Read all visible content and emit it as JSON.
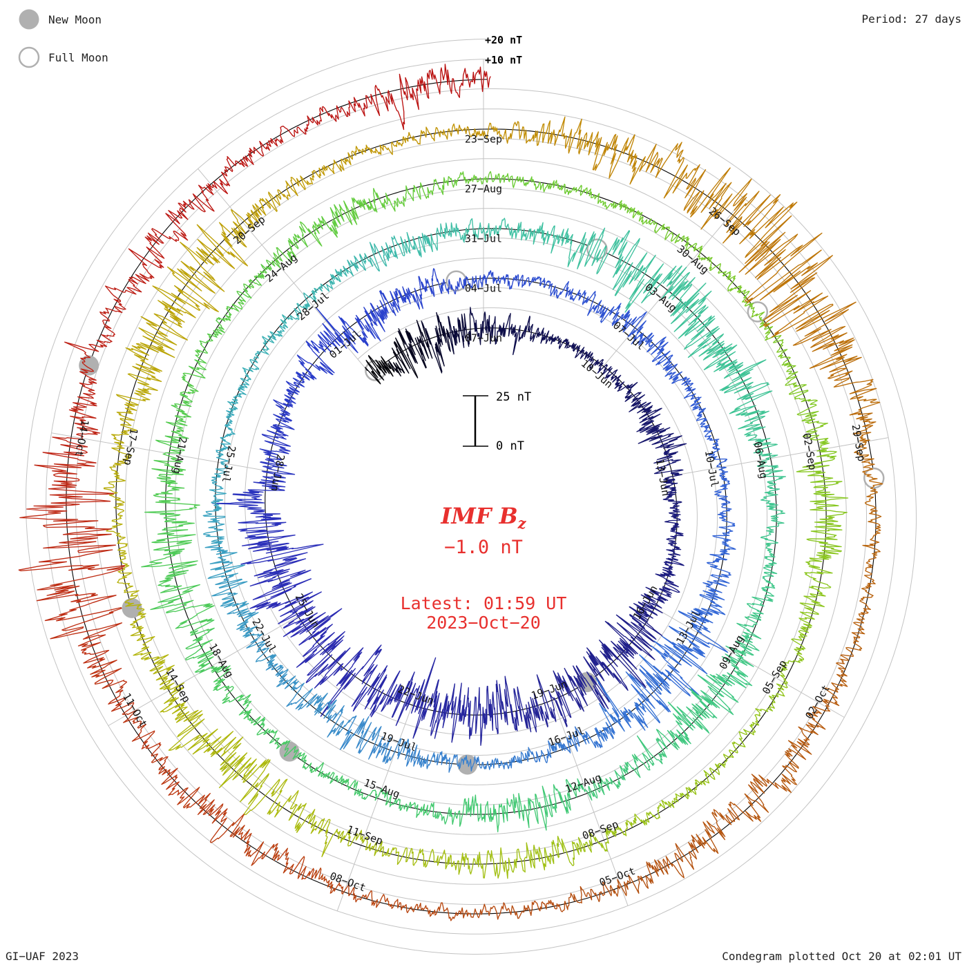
{
  "legend": {
    "new_moon_label": "New Moon",
    "full_moon_label": "Full Moon"
  },
  "header": {
    "period_label": "Period: 27 days"
  },
  "center_panel": {
    "title_main": "IMF B",
    "title_sub": "z",
    "value": "−1.0 nT",
    "latest_line1": "Latest: 01:59 UT",
    "latest_line2": "2023−Oct−20"
  },
  "scale_bar": {
    "top_label": "25 nT",
    "bottom_label": "0 nT"
  },
  "grid_labels": {
    "outer_plus20": "+20 nT",
    "outer_plus10": "+10 nT"
  },
  "footer": {
    "left": "GI−UAF 2023",
    "right": "Condegram plotted Oct 20 at 02:01 UT"
  },
  "colors": {
    "accent_red": "#e8302e",
    "moon_gray": "#b0b0b0",
    "grid_gray": "#c3c3c3",
    "baseline_black": "#000000",
    "label_black": "#111111"
  },
  "chart_data": {
    "type": "line",
    "subtype": "condegram-spiral",
    "description": "Solar wind IMF Bz plotted as a spiral, one revolution per 27-day solar rotation; time runs clockwise from top, 2023-Jun-04 through latest sample 2023-Oct-20 01:59 UT. Radial offset from the black baseline spiral gives Bz in nT (gray rings at +10 and +20 nT).",
    "title": "IMF Bz",
    "latest_value_nT": -1.0,
    "latest_time": "01:59 UT",
    "latest_date": "2023-Oct-20",
    "period_days": 27,
    "start_day_date": "2023-Jun-04",
    "radial_scale": {
      "bar_labels": [
        "0 nT",
        "25 nT"
      ],
      "bar_span_nT": 25,
      "grid_offsets_nT": [
        10,
        20
      ]
    },
    "date_labels": [
      {
        "text": "07−Jun",
        "day": 3
      },
      {
        "text": "04−Jul",
        "day": 30
      },
      {
        "text": "31−Jul",
        "day": 57
      },
      {
        "text": "27−Aug",
        "day": 84
      },
      {
        "text": "23−Sep",
        "day": 111
      },
      {
        "text": "10−Jun",
        "day": 6
      },
      {
        "text": "07−Jul",
        "day": 33
      },
      {
        "text": "03−Aug",
        "day": 60
      },
      {
        "text": "30−Aug",
        "day": 87
      },
      {
        "text": "26−Sep",
        "day": 114
      },
      {
        "text": "13−Jun",
        "day": 9
      },
      {
        "text": "10−Jul",
        "day": 36
      },
      {
        "text": "06−Aug",
        "day": 63
      },
      {
        "text": "02−Sep",
        "day": 90
      },
      {
        "text": "29−Sep",
        "day": 117
      },
      {
        "text": "16−Jun",
        "day": 12
      },
      {
        "text": "13−Jul",
        "day": 39
      },
      {
        "text": "09−Aug",
        "day": 66
      },
      {
        "text": "05−Sep",
        "day": 93
      },
      {
        "text": "02−Oct",
        "day": 120
      },
      {
        "text": "19−Jun",
        "day": 15
      },
      {
        "text": "16−Jul",
        "day": 42
      },
      {
        "text": "12−Aug",
        "day": 69
      },
      {
        "text": "08−Sep",
        "day": 96
      },
      {
        "text": "05−Oct",
        "day": 123
      },
      {
        "text": "22−Jun",
        "day": 18
      },
      {
        "text": "19−Jul",
        "day": 45
      },
      {
        "text": "15−Aug",
        "day": 72
      },
      {
        "text": "11−Sep",
        "day": 99
      },
      {
        "text": "08−Oct",
        "day": 126
      },
      {
        "text": "25−Jun",
        "day": 21
      },
      {
        "text": "22−Jul",
        "day": 48
      },
      {
        "text": "18−Aug",
        "day": 75
      },
      {
        "text": "14−Sep",
        "day": 102
      },
      {
        "text": "11−Oct",
        "day": 129
      },
      {
        "text": "28−Jun",
        "day": 24
      },
      {
        "text": "25−Jul",
        "day": 51
      },
      {
        "text": "21−Aug",
        "day": 78
      },
      {
        "text": "17−Sep",
        "day": 105
      },
      {
        "text": "14−Oct",
        "day": 132
      },
      {
        "text": "01−Jul",
        "day": 27
      },
      {
        "text": "28−Jul",
        "day": 54
      },
      {
        "text": "24−Aug",
        "day": 81
      },
      {
        "text": "20−Sep",
        "day": 108
      }
    ],
    "moon_events": {
      "new_moons": [
        {
          "date": "2023-Jun-18",
          "day": 14.19
        },
        {
          "date": "2023-Jul-17",
          "day": 43.77
        },
        {
          "date": "2023-Aug-16",
          "day": 73.4
        },
        {
          "date": "2023-Sep-15",
          "day": 103.07
        },
        {
          "date": "2023-Oct-14",
          "day": 132.75
        }
      ],
      "full_moons": [
        {
          "date": "2023-Jun-04",
          "day": 0.15
        },
        {
          "date": "2023-Jul-03",
          "day": 29.49
        },
        {
          "date": "2023-Aug-01",
          "day": 58.77
        },
        {
          "date": "2023-Aug-31",
          "day": 88.07
        },
        {
          "date": "2023-Sep-29",
          "day": 117.41
        }
      ]
    },
    "color_stops": [
      {
        "day": 0,
        "color": "#000000"
      },
      {
        "day": 3,
        "color": "#0d0d45"
      },
      {
        "day": 9,
        "color": "#191975"
      },
      {
        "day": 15,
        "color": "#232394"
      },
      {
        "day": 21,
        "color": "#2c2cb4"
      },
      {
        "day": 27,
        "color": "#2a3fcc"
      },
      {
        "day": 33,
        "color": "#2f55d2"
      },
      {
        "day": 39,
        "color": "#3268d6"
      },
      {
        "day": 45,
        "color": "#3a86cc"
      },
      {
        "day": 51,
        "color": "#3aa8be"
      },
      {
        "day": 57,
        "color": "#3fc0a4"
      },
      {
        "day": 63,
        "color": "#3fc492"
      },
      {
        "day": 66,
        "color": "#41c886"
      },
      {
        "day": 72,
        "color": "#43c96a"
      },
      {
        "day": 78,
        "color": "#52cb50"
      },
      {
        "day": 84,
        "color": "#69cc37"
      },
      {
        "day": 90,
        "color": "#85c722"
      },
      {
        "day": 96,
        "color": "#9dc214"
      },
      {
        "day": 102,
        "color": "#b2b60c"
      },
      {
        "day": 108,
        "color": "#bf9f07"
      },
      {
        "day": 111,
        "color": "#c29104"
      },
      {
        "day": 114,
        "color": "#bf7b08"
      },
      {
        "day": 117,
        "color": "#ba690b"
      },
      {
        "day": 120,
        "color": "#b75c0e"
      },
      {
        "day": 123,
        "color": "#b34e0e"
      },
      {
        "day": 126,
        "color": "#ba4310"
      },
      {
        "day": 129,
        "color": "#bd3513"
      },
      {
        "day": 132,
        "color": "#bf2516"
      },
      {
        "day": 135,
        "color": "#bc1713"
      },
      {
        "day": 138.1,
        "color": "#ba1111"
      }
    ],
    "activity_storms": [
      [
        1.7,
        1.6,
        8
      ],
      [
        8,
        1,
        5
      ],
      [
        13.5,
        2,
        9
      ],
      [
        16.5,
        1.5,
        8
      ],
      [
        19.5,
        2,
        9
      ],
      [
        22.5,
        2,
        9
      ],
      [
        27.5,
        1.5,
        6
      ],
      [
        33,
        1,
        4
      ],
      [
        39.8,
        1.6,
        10
      ],
      [
        45.7,
        1.2,
        6
      ],
      [
        49,
        1,
        5
      ],
      [
        55.7,
        0.8,
        4
      ],
      [
        60.5,
        2.2,
        11
      ],
      [
        66.7,
        1.2,
        7
      ],
      [
        70,
        1,
        6
      ],
      [
        76.5,
        1.8,
        8
      ],
      [
        82,
        1,
        4
      ],
      [
        90.7,
        1.2,
        7
      ],
      [
        97,
        1,
        5
      ],
      [
        101,
        1.4,
        9
      ],
      [
        106.9,
        1.3,
        11
      ],
      [
        112.4,
        0.9,
        6
      ],
      [
        114.8,
        1.5,
        19
      ],
      [
        121.5,
        1.4,
        6
      ],
      [
        127.5,
        1,
        5
      ],
      [
        130.9,
        1.2,
        18
      ],
      [
        134.3,
        0.9,
        5
      ],
      [
        137.4,
        0.7,
        7
      ]
    ],
    "base_amplitude_nT": 3.0,
    "mean_bias_nT": -0.9,
    "time_span_days": 138.08
  }
}
